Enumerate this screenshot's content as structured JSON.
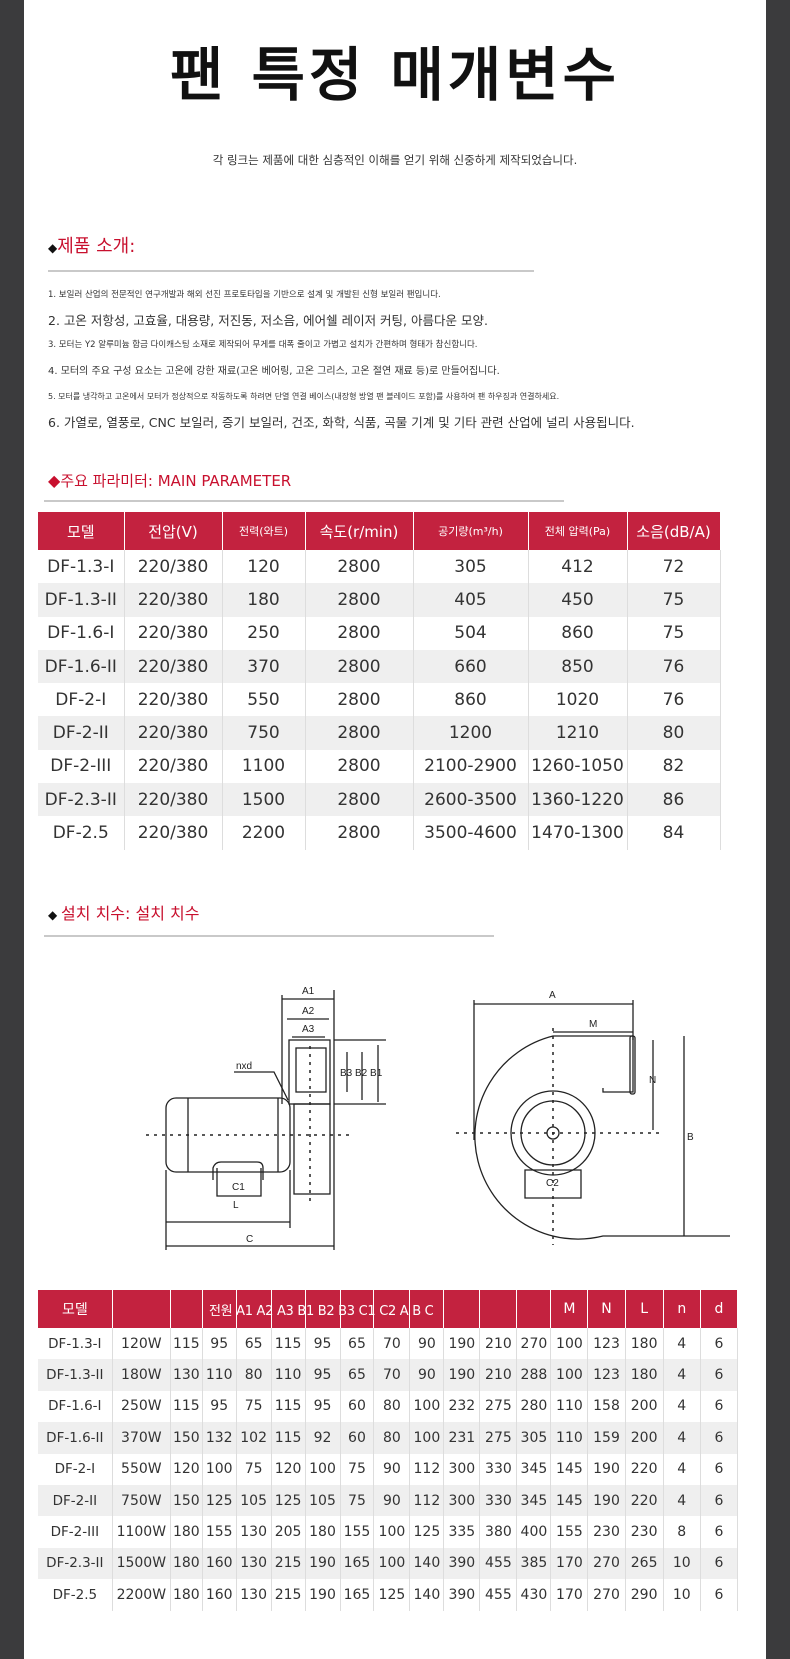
{
  "title": "팬 특정 매개변수",
  "subtitle": "각 링크는 제품에 대한 심층적인 이해를 얻기 위해 신중하게 제작되었습니다.",
  "intro": {
    "heading": "제품 소개:",
    "items": [
      "1. 보일러 산업의 전문적인 연구개발과 해외 선진 프로토타입을 기반으로 설계 및 개발된 신형 보일러 팬입니다.",
      "2. 고온 저항성, 고효율, 대용량, 저진동, 저소음, 에어쉘 레이저 커팅, 아름다운 모양.",
      "3. 모터는 Y2 알루미늄 합금 다이캐스팅 소재로 제작되어 무게를 대폭 줄이고 가볍고 설치가 간편하며 형태가 참신합니다.",
      "4. 모터의 주요 구성 요소는 고온에 강한 재료(고온 베어링, 고온 그리스, 고온 절연 재료 등)로 만들어집니다.",
      "5. 모터를 냉각하고 고온에서 모터가 정상적으로 작동하도록 하려면 단열 연결 베이스(내장형 방열 팬 블레이드 포함)를 사용하여 팬 하우징과 연결하세요.",
      "6. 가열로, 열풍로, CNC 보일러, 증기 보일러, 건조, 화학, 식품, 곡물 기계 및 기타 관련 산업에 널리 사용됩니다."
    ]
  },
  "main_param": {
    "heading": "주요 파라미터: MAIN PARAMETER",
    "headers": [
      "모델",
      "전압(V)",
      "전력(와트)",
      "속도(r/min)",
      "공기량(m³/h)",
      "전체 압력(Pa)",
      "소음(dB/A)"
    ],
    "rows": [
      [
        "DF-1.3-I",
        "220/380",
        "120",
        "2800",
        "305",
        "412",
        "72"
      ],
      [
        "DF-1.3-II",
        "220/380",
        "180",
        "2800",
        "405",
        "450",
        "75"
      ],
      [
        "DF-1.6-I",
        "220/380",
        "250",
        "2800",
        "504",
        "860",
        "75"
      ],
      [
        "DF-1.6-II",
        "220/380",
        "370",
        "2800",
        "660",
        "850",
        "76"
      ],
      [
        "DF-2-I",
        "220/380",
        "550",
        "2800",
        "860",
        "1020",
        "76"
      ],
      [
        "DF-2-II",
        "220/380",
        "750",
        "2800",
        "1200",
        "1210",
        "80"
      ],
      [
        "DF-2-III",
        "220/380",
        "1100",
        "2800",
        "2100-2900",
        "1260-1050",
        "82"
      ],
      [
        "DF-2.3-II",
        "220/380",
        "1500",
        "2800",
        "2600-3500",
        "1360-1220",
        "86"
      ],
      [
        "DF-2.5",
        "220/380",
        "2200",
        "2800",
        "3500-4600",
        "1470-1300",
        "84"
      ]
    ]
  },
  "install": {
    "heading": "설치 치수: 설치 치수",
    "diagram_labels": {
      "a1": "A1",
      "a2": "A2",
      "a3": "A3",
      "nxd": "nxd",
      "b": "B3 B2 B1",
      "c1": "C1",
      "l": "L",
      "c": "C",
      "a": "A",
      "m": "M",
      "n": "N",
      "bb": "B",
      "c2": "C2"
    },
    "headers": [
      "모델",
      "",
      "",
      "",
      "",
      "",
      "",
      "",
      "",
      "",
      "",
      "",
      "",
      "M",
      "N",
      "L",
      "n",
      "d"
    ],
    "header_overlay": "전원 A1 A2 A3 B1 B2 B3 C1 C2 A B C",
    "rows": [
      [
        "DF-1.3-I",
        "120W",
        "115",
        "95",
        "65",
        "115",
        "95",
        "65",
        "70",
        "90",
        "190",
        "210",
        "270",
        "100",
        "123",
        "180",
        "4",
        "6"
      ],
      [
        "DF-1.3-II",
        "180W",
        "130",
        "110",
        "80",
        "110",
        "95",
        "65",
        "70",
        "90",
        "190",
        "210",
        "288",
        "100",
        "123",
        "180",
        "4",
        "6"
      ],
      [
        "DF-1.6-I",
        "250W",
        "115",
        "95",
        "75",
        "115",
        "95",
        "60",
        "80",
        "100",
        "232",
        "275",
        "280",
        "110",
        "158",
        "200",
        "4",
        "6"
      ],
      [
        "DF-1.6-II",
        "370W",
        "150",
        "132",
        "102",
        "115",
        "92",
        "60",
        "80",
        "100",
        "231",
        "275",
        "305",
        "110",
        "159",
        "200",
        "4",
        "6"
      ],
      [
        "DF-2-I",
        "550W",
        "120",
        "100",
        "75",
        "120",
        "100",
        "75",
        "90",
        "112",
        "300",
        "330",
        "345",
        "145",
        "190",
        "220",
        "4",
        "6"
      ],
      [
        "DF-2-II",
        "750W",
        "150",
        "125",
        "105",
        "125",
        "105",
        "75",
        "90",
        "112",
        "300",
        "330",
        "345",
        "145",
        "190",
        "220",
        "4",
        "6"
      ],
      [
        "DF-2-III",
        "1100W",
        "180",
        "155",
        "130",
        "205",
        "180",
        "155",
        "100",
        "125",
        "335",
        "380",
        "400",
        "155",
        "230",
        "230",
        "8",
        "6"
      ],
      [
        "DF-2.3-II",
        "1500W",
        "180",
        "160",
        "130",
        "215",
        "190",
        "165",
        "100",
        "140",
        "390",
        "455",
        "385",
        "170",
        "270",
        "265",
        "10",
        "6"
      ],
      [
        "DF-2.5",
        "2200W",
        "180",
        "160",
        "130",
        "215",
        "190",
        "165",
        "125",
        "140",
        "390",
        "455",
        "430",
        "170",
        "270",
        "290",
        "10",
        "6"
      ]
    ]
  },
  "colors": {
    "accent": "#c3223f",
    "border": "#3b3b3d"
  }
}
